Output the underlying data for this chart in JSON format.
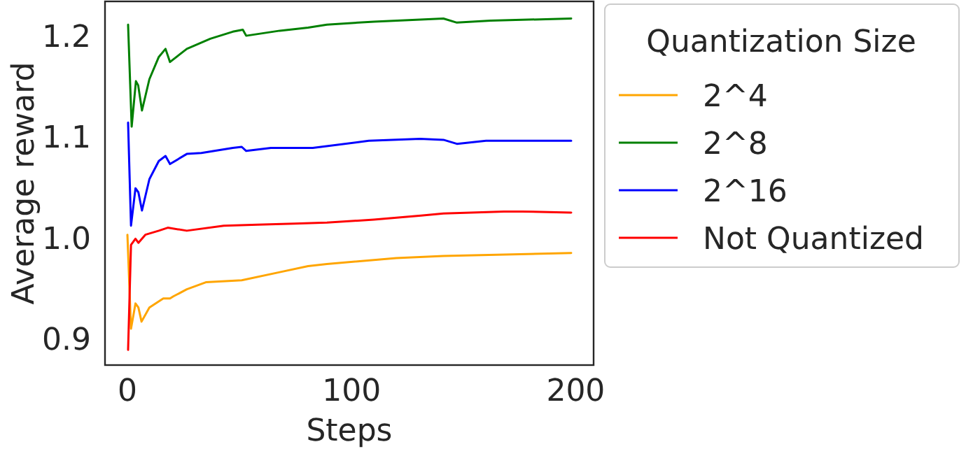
{
  "chart_data": {
    "type": "line",
    "xlabel": "Steps",
    "ylabel": "Average reward",
    "legend_title": "Quantization Size",
    "legend": "top right",
    "grid": false,
    "xlim": [
      -10,
      208
    ],
    "xticks": [
      0,
      100,
      200
    ],
    "ylim": [
      0.875,
      1.235
    ],
    "yticks": [
      {
        "value": 0.9,
        "label": "0.9"
      },
      {
        "value": 1.0,
        "label": "1.0"
      },
      {
        "value": 1.1,
        "label": "1.1"
      },
      {
        "value": 1.2,
        "label": "1.2"
      }
    ],
    "series": [
      {
        "name": "2^4",
        "color": "#ffa500",
        "x": [
          0,
          1.6,
          3.6,
          4.9,
          6.3,
          9.8,
          16,
          19,
          20.5,
          26.5,
          35,
          51,
          68,
          80.6,
          89,
          120,
          141,
          198
        ],
        "values": [
          1.004,
          0.911,
          0.936,
          0.932,
          0.918,
          0.932,
          0.941,
          0.941,
          0.943,
          0.95,
          0.957,
          0.959,
          0.967,
          0.973,
          0.975,
          0.981,
          0.983,
          0.986
        ]
      },
      {
        "name": "2^8",
        "color": "#008000",
        "x": [
          0.3,
          1.9,
          3.8,
          4.8,
          6.5,
          9.8,
          14,
          17,
          19,
          26.5,
          37,
          47,
          51.5,
          53,
          68,
          80.6,
          89,
          110,
          141,
          147,
          162,
          198
        ],
        "values": [
          1.212,
          1.111,
          1.156,
          1.152,
          1.127,
          1.158,
          1.18,
          1.188,
          1.175,
          1.188,
          1.198,
          1.205,
          1.207,
          1.201,
          1.206,
          1.209,
          1.212,
          1.215,
          1.218,
          1.214,
          1.216,
          1.218
        ]
      },
      {
        "name": "2^16",
        "color": "#0000ff",
        "x": [
          0.3,
          1.6,
          3.6,
          4.9,
          6.5,
          9.8,
          14,
          17,
          19,
          26.5,
          33,
          47,
          51,
          53,
          64,
          82.7,
          107.7,
          130.6,
          141,
          147,
          160,
          198
        ],
        "values": [
          1.115,
          1.013,
          1.05,
          1.046,
          1.028,
          1.059,
          1.077,
          1.082,
          1.074,
          1.084,
          1.085,
          1.09,
          1.091,
          1.087,
          1.09,
          1.09,
          1.097,
          1.099,
          1.098,
          1.094,
          1.097,
          1.097
        ]
      },
      {
        "name": "Not Quantized",
        "color": "#ff0000",
        "x": [
          0.3,
          1.6,
          3.6,
          4.9,
          8,
          14,
          18,
          26.5,
          43,
          58,
          74.4,
          89,
          110,
          131,
          141,
          168,
          176,
          198
        ],
        "values": [
          0.89,
          0.994,
          1.0,
          0.996,
          1.004,
          1.008,
          1.011,
          1.008,
          1.013,
          1.014,
          1.015,
          1.016,
          1.019,
          1.023,
          1.025,
          1.027,
          1.027,
          1.026
        ]
      }
    ]
  }
}
